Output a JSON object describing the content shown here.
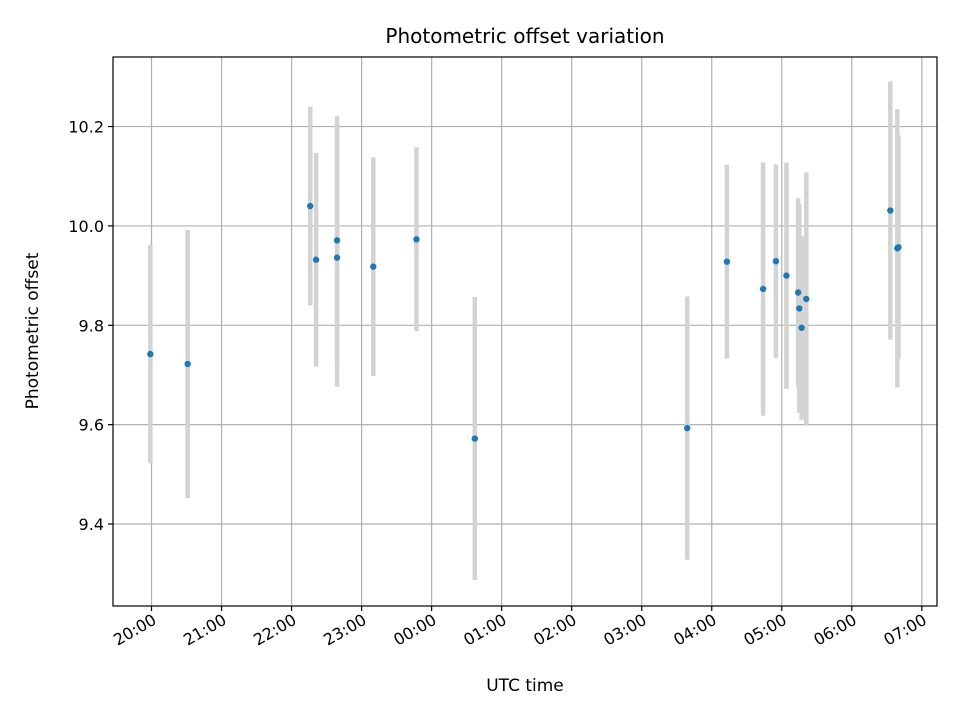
{
  "chart_data": {
    "type": "scatter",
    "title": "Photometric offset variation",
    "xlabel": "UTC time",
    "ylabel": "Photometric offset",
    "xlim": [
      "19:27",
      "07:13"
    ],
    "ylim": [
      9.235,
      10.34
    ],
    "x_ticks": [
      "20:00",
      "21:00",
      "22:00",
      "23:00",
      "00:00",
      "01:00",
      "02:00",
      "03:00",
      "04:00",
      "05:00",
      "06:00",
      "07:00"
    ],
    "y_ticks": [
      "9.4",
      "9.6",
      "9.8",
      "10.0",
      "10.2"
    ],
    "grid": true,
    "marker_color": "#1f77b4",
    "errorbar_color": "#d3d3d3",
    "points": [
      {
        "time": "19:59",
        "y": 9.742,
        "yerr": 0.22
      },
      {
        "time": "20:31",
        "y": 9.722,
        "yerr": 0.27
      },
      {
        "time": "22:16",
        "y": 10.04,
        "yerr": 0.2
      },
      {
        "time": "22:21",
        "y": 9.932,
        "yerr": 0.215
      },
      {
        "time": "22:39",
        "y": 9.971,
        "yerr": 0.25
      },
      {
        "time": "22:39",
        "y": 9.936,
        "yerr": 0.26
      },
      {
        "time": "23:10",
        "y": 9.918,
        "yerr": 0.22
      },
      {
        "time": "23:47",
        "y": 9.973,
        "yerr": 0.185
      },
      {
        "time": "00:37",
        "y": 9.572,
        "yerr": 0.285
      },
      {
        "time": "03:39",
        "y": 9.593,
        "yerr": 0.265
      },
      {
        "time": "04:13",
        "y": 9.928,
        "yerr": 0.195
      },
      {
        "time": "04:44",
        "y": 9.873,
        "yerr": 0.255
      },
      {
        "time": "04:55",
        "y": 9.929,
        "yerr": 0.195
      },
      {
        "time": "05:04",
        "y": 9.9,
        "yerr": 0.228
      },
      {
        "time": "05:14",
        "y": 9.866,
        "yerr": 0.19
      },
      {
        "time": "05:15",
        "y": 9.834,
        "yerr": 0.21
      },
      {
        "time": "05:17",
        "y": 9.795,
        "yerr": 0.185
      },
      {
        "time": "05:21",
        "y": 9.853,
        "yerr": 0.255
      },
      {
        "time": "06:33",
        "y": 10.031,
        "yerr": 0.26
      },
      {
        "time": "06:39",
        "y": 9.955,
        "yerr": 0.28
      },
      {
        "time": "06:40",
        "y": 9.957,
        "yerr": 0.225
      }
    ]
  }
}
